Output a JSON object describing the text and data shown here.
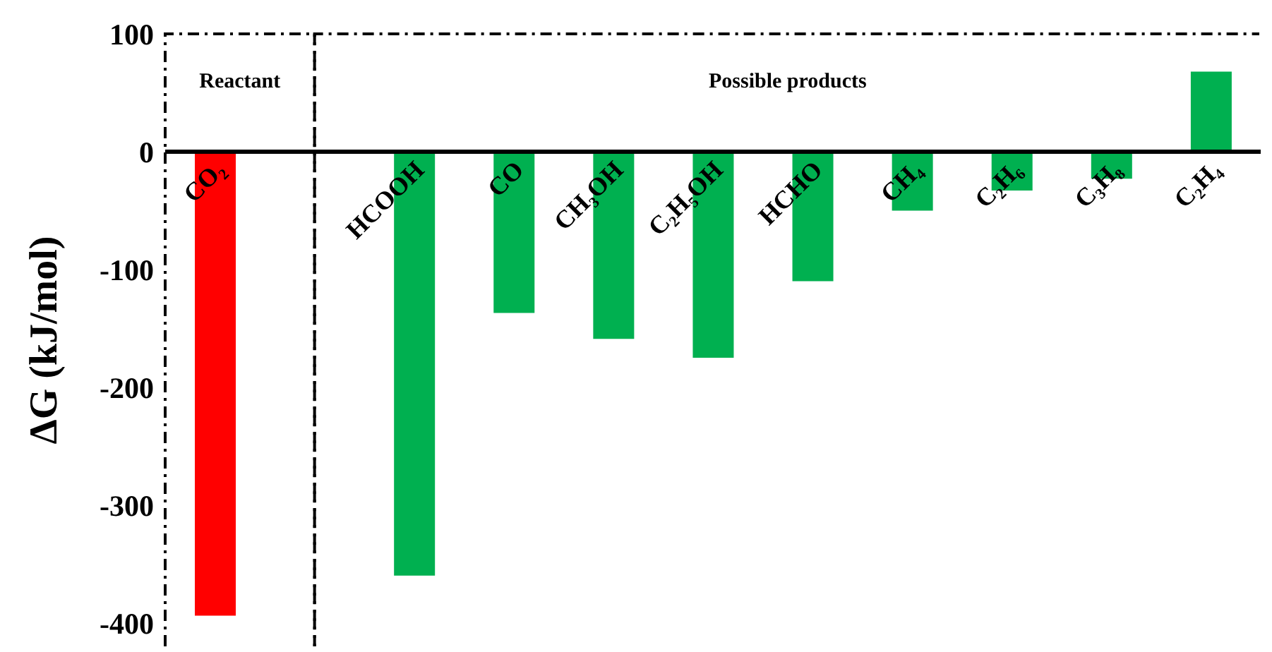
{
  "chart_data": {
    "type": "bar",
    "ylabel": "ΔG (kJ/mol)",
    "categories": [
      "CO₂",
      null,
      "HCOOH",
      "CO",
      "CH₃OH",
      "C₂H₅OH",
      "HCHO",
      "CH₄",
      "C₂H₆",
      "C₃H₈",
      "C₂H₄"
    ],
    "values": [
      -394,
      null,
      -360,
      -137,
      -159,
      -175,
      -110,
      -50,
      -33,
      -23,
      68
    ],
    "colors": [
      "#ff0000",
      null,
      "#00b050",
      "#00b050",
      "#00b050",
      "#00b050",
      "#00b050",
      "#00b050",
      "#00b050",
      "#00b050",
      "#00b050"
    ],
    "ylim": [
      -420,
      100
    ],
    "yticks": [
      -400,
      -300,
      -200,
      -100,
      0,
      100
    ],
    "grid": false,
    "legend": false,
    "annotations": [
      "Reactant",
      "Possible products"
    ]
  }
}
